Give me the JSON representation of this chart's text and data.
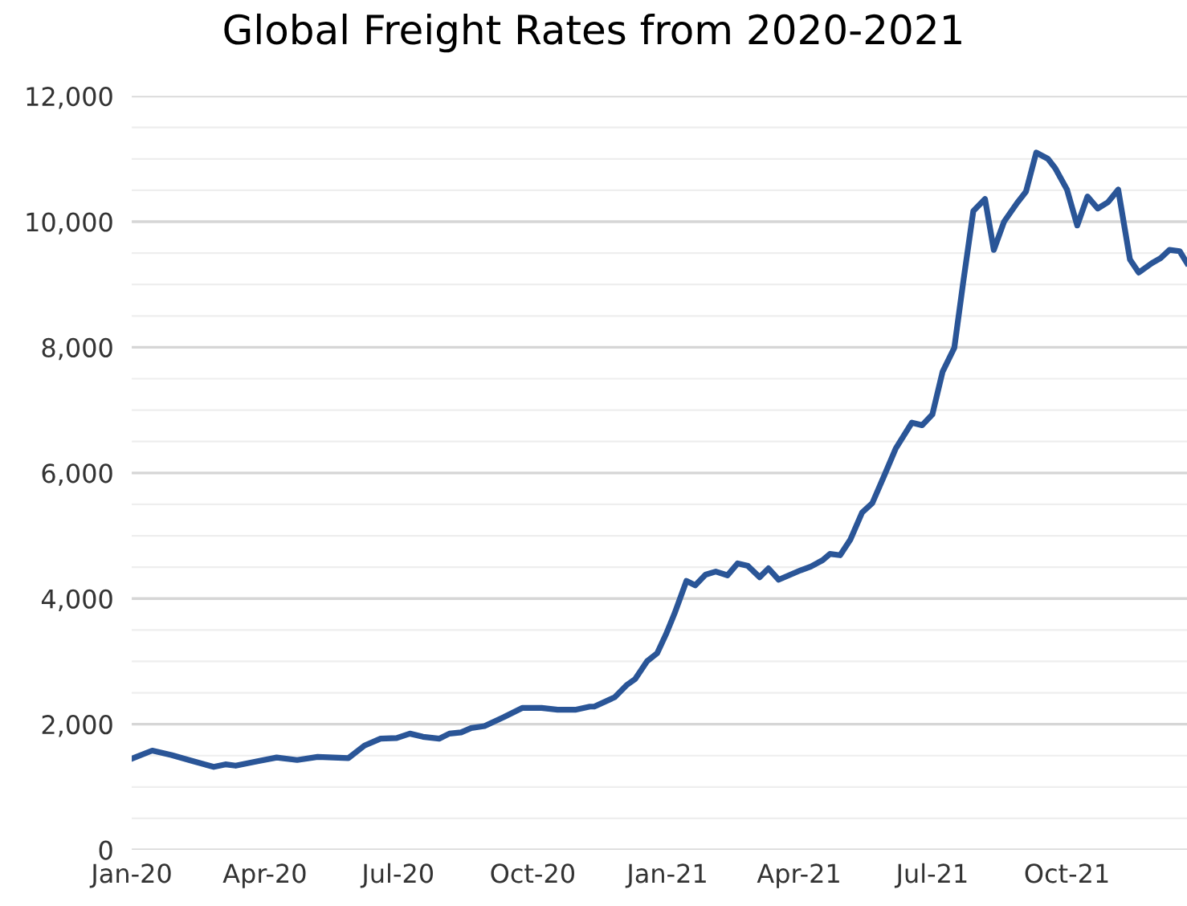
{
  "chart_data": {
    "type": "line",
    "title": "Global Freight Rates from 2020-2021",
    "x": [
      "2020-01-01",
      "2020-01-15",
      "2020-01-28",
      "2020-02-12",
      "2020-02-26",
      "2020-03-05",
      "2020-03-12",
      "2020-03-27",
      "2020-04-09",
      "2020-04-23",
      "2020-05-07",
      "2020-05-28",
      "2020-06-08",
      "2020-06-19",
      "2020-06-30",
      "2020-07-09",
      "2020-07-18",
      "2020-07-29",
      "2020-08-05",
      "2020-08-13",
      "2020-08-20",
      "2020-08-29",
      "2020-09-11",
      "2020-09-24",
      "2020-10-07",
      "2020-10-18",
      "2020-10-30",
      "2020-11-09",
      "2020-11-12",
      "2020-11-26",
      "2020-12-04",
      "2020-12-10",
      "2020-12-18",
      "2020-12-25",
      "2020-12-31",
      "2021-01-06",
      "2021-01-14",
      "2021-01-20",
      "2021-01-27",
      "2021-02-03",
      "2021-02-11",
      "2021-02-18",
      "2021-02-25",
      "2021-03-05",
      "2021-03-11",
      "2021-03-18",
      "2021-04-02",
      "2021-04-09",
      "2021-04-17",
      "2021-04-22",
      "2021-04-29",
      "2021-05-06",
      "2021-05-14",
      "2021-05-21",
      "2021-05-29",
      "2021-06-06",
      "2021-06-17",
      "2021-06-24",
      "2021-07-01",
      "2021-07-08",
      "2021-07-16",
      "2021-07-22",
      "2021-07-29",
      "2021-08-06",
      "2021-08-12",
      "2021-08-19",
      "2021-08-28",
      "2021-09-03",
      "2021-09-10",
      "2021-09-18",
      "2021-09-23",
      "2021-10-01",
      "2021-10-08",
      "2021-10-15",
      "2021-10-22",
      "2021-10-29",
      "2021-11-05",
      "2021-11-13",
      "2021-11-19",
      "2021-11-28",
      "2021-12-04",
      "2021-12-10",
      "2021-12-17",
      "2021-12-22"
    ],
    "series": [
      {
        "color": "#2a5597",
        "values": [
          1450,
          1580,
          1510,
          1410,
          1320,
          1360,
          1340,
          1410,
          1470,
          1430,
          1480,
          1460,
          1660,
          1770,
          1780,
          1850,
          1800,
          1770,
          1850,
          1870,
          1940,
          1970,
          2110,
          2260,
          2260,
          2230,
          2230,
          2280,
          2280,
          2430,
          2620,
          2720,
          3000,
          3130,
          3430,
          3770,
          4280,
          4210,
          4380,
          4430,
          4370,
          4560,
          4520,
          4340,
          4480,
          4300,
          4450,
          4510,
          4610,
          4710,
          4690,
          4940,
          5370,
          5520,
          5950,
          6390,
          6800,
          6760,
          6930,
          7610,
          7990,
          9020,
          10170,
          10360,
          9550,
          10000,
          10300,
          10480,
          11100,
          11000,
          10850,
          10510,
          9940,
          10400,
          10210,
          10310,
          10510,
          9400,
          9190,
          9340,
          9420,
          9550,
          9530,
          9340
        ]
      }
    ],
    "xlim": [
      "2020-01-01",
      "2021-12-22"
    ],
    "xticks": [
      {
        "value": "2020-01-01",
        "label": "Jan-20"
      },
      {
        "value": "2020-04-01",
        "label": "Apr-20"
      },
      {
        "value": "2020-07-01",
        "label": "Jul-20"
      },
      {
        "value": "2020-10-01",
        "label": "Oct-20"
      },
      {
        "value": "2021-01-01",
        "label": "Jan-21"
      },
      {
        "value": "2021-04-01",
        "label": "Apr-21"
      },
      {
        "value": "2021-07-01",
        "label": "Jul-21"
      },
      {
        "value": "2021-10-01",
        "label": "Oct-21"
      }
    ],
    "ylim": [
      0,
      12000
    ],
    "yticks": [
      {
        "value": 0,
        "label": "0"
      },
      {
        "value": 500,
        "label": null
      },
      {
        "value": 1000,
        "label": null
      },
      {
        "value": 1500,
        "label": null
      },
      {
        "value": 2000,
        "label": "2,000"
      },
      {
        "value": 2500,
        "label": null
      },
      {
        "value": 3000,
        "label": null
      },
      {
        "value": 3500,
        "label": null
      },
      {
        "value": 4000,
        "label": "4,000"
      },
      {
        "value": 4500,
        "label": null
      },
      {
        "value": 5000,
        "label": null
      },
      {
        "value": 5500,
        "label": null
      },
      {
        "value": 6000,
        "label": "6,000"
      },
      {
        "value": 6500,
        "label": null
      },
      {
        "value": 7000,
        "label": null
      },
      {
        "value": 7500,
        "label": null
      },
      {
        "value": 8000,
        "label": "8,000"
      },
      {
        "value": 8500,
        "label": null
      },
      {
        "value": 9000,
        "label": null
      },
      {
        "value": 9500,
        "label": null
      },
      {
        "value": 10000,
        "label": "10,000"
      },
      {
        "value": 10500,
        "label": null
      },
      {
        "value": 11000,
        "label": null
      },
      {
        "value": 11500,
        "label": null
      },
      {
        "value": 12000,
        "label": "12,000"
      }
    ],
    "grid": "y",
    "marker": "none",
    "line_style": "solid"
  }
}
